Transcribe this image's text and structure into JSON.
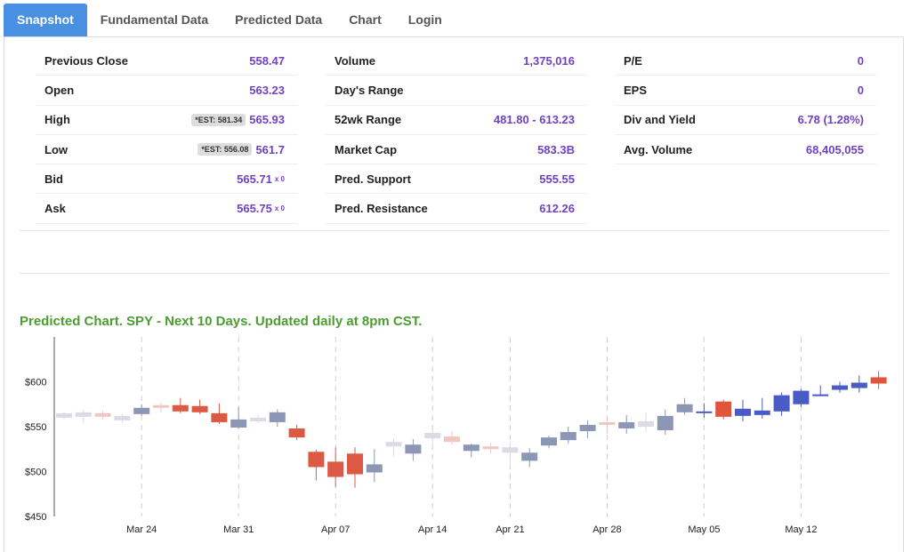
{
  "tabs": [
    "Snapshot",
    "Fundamental Data",
    "Predicted Data",
    "Chart",
    "Login"
  ],
  "active_tab": "Snapshot",
  "col1": [
    {
      "label": "Previous Close",
      "value": "558.47"
    },
    {
      "label": "Open",
      "value": "563.23"
    },
    {
      "label": "High",
      "est": "*EST: 581.34",
      "value": "565.93"
    },
    {
      "label": "Low",
      "est": "*EST: 556.08",
      "value": "561.7"
    },
    {
      "label": "Bid",
      "value": "565.71",
      "sub": "x 0"
    },
    {
      "label": "Ask",
      "value": "565.75",
      "sub": "x 0"
    }
  ],
  "col2": [
    {
      "label": "Volume",
      "value": "1,375,016"
    },
    {
      "label": "Day's Range",
      "value": ""
    },
    {
      "label": "52wk Range",
      "value": "481.80 - 613.23"
    },
    {
      "label": "Market Cap",
      "value": "583.3B"
    },
    {
      "label": "Pred. Support",
      "value": "555.55"
    },
    {
      "label": "Pred. Resistance",
      "value": "612.26"
    }
  ],
  "col3": [
    {
      "label": "P/E",
      "value": "0"
    },
    {
      "label": "EPS",
      "value": "0"
    },
    {
      "label": "Div and Yield",
      "value": "6.78 (1.28%)"
    },
    {
      "label": "Avg. Volume",
      "value": "68,405,055"
    }
  ],
  "chart_title": "Predicted Chart. SPY - Next 10 Days. Updated daily at 8pm CST.",
  "colors": {
    "tab_active": "#4a90e2",
    "value_purple": "#6f42c1",
    "title_green": "#4a9d2e",
    "hist_up": "#dadbe3",
    "hist_up_strong": "#8c97b5",
    "hist_down": "#f0c6c0",
    "hist_down_strong": "#dc5a44",
    "pred_up": "#4a5bc6",
    "pred_down": "#e2553d"
  },
  "chart_data": {
    "type": "candlestick",
    "title": "Predicted Chart. SPY - Next 10 Days. Updated daily at 8pm CST.",
    "ylim": [
      450,
      650
    ],
    "y_ticks": [
      450,
      500,
      550,
      600
    ],
    "y_tick_labels": [
      "$450",
      "$500",
      "$550",
      "$600"
    ],
    "x_tick_labels": [
      "Mar 24",
      "Mar 31",
      "Apr 07",
      "Apr 14",
      "Apr 21",
      "Apr 28",
      "May 05",
      "May 12"
    ],
    "x_tick_index": [
      4,
      9,
      14,
      19,
      23,
      28,
      33,
      38
    ],
    "candles": [
      {
        "o": 560,
        "c": 565,
        "h": 566,
        "l": 559,
        "kind": "hist"
      },
      {
        "o": 561,
        "c": 566,
        "h": 569,
        "l": 554,
        "kind": "hist"
      },
      {
        "o": 565,
        "c": 561,
        "h": 568,
        "l": 558,
        "kind": "hist"
      },
      {
        "o": 557,
        "c": 562,
        "h": 564,
        "l": 554,
        "kind": "hist"
      },
      {
        "o": 564,
        "c": 571,
        "h": 575,
        "l": 562,
        "kind": "hist"
      },
      {
        "o": 574,
        "c": 571,
        "h": 577,
        "l": 566,
        "kind": "hist"
      },
      {
        "o": 574,
        "c": 567,
        "h": 582,
        "l": 565,
        "kind": "hist"
      },
      {
        "o": 573,
        "c": 566,
        "h": 580,
        "l": 564,
        "kind": "hist"
      },
      {
        "o": 565,
        "c": 555,
        "h": 576,
        "l": 553,
        "kind": "hist"
      },
      {
        "o": 549,
        "c": 558,
        "h": 572,
        "l": 548,
        "kind": "hist"
      },
      {
        "o": 556,
        "c": 560,
        "h": 563,
        "l": 554,
        "kind": "hist"
      },
      {
        "o": 555,
        "c": 566,
        "h": 569,
        "l": 550,
        "kind": "hist"
      },
      {
        "o": 548,
        "c": 538,
        "h": 552,
        "l": 535,
        "kind": "hist"
      },
      {
        "o": 522,
        "c": 505,
        "h": 524,
        "l": 490,
        "kind": "hist"
      },
      {
        "o": 511,
        "c": 494,
        "h": 527,
        "l": 483,
        "kind": "hist"
      },
      {
        "o": 520,
        "c": 497,
        "h": 527,
        "l": 482,
        "kind": "hist"
      },
      {
        "o": 499,
        "c": 508,
        "h": 525,
        "l": 488,
        "kind": "hist"
      },
      {
        "o": 528,
        "c": 533,
        "h": 537,
        "l": 517,
        "kind": "hist"
      },
      {
        "o": 520,
        "c": 530,
        "h": 536,
        "l": 512,
        "kind": "hist"
      },
      {
        "o": 537,
        "c": 543,
        "h": 546,
        "l": 524,
        "kind": "hist"
      },
      {
        "o": 539,
        "c": 533,
        "h": 545,
        "l": 530,
        "kind": "hist"
      },
      {
        "o": 523,
        "c": 530,
        "h": 531,
        "l": 516,
        "kind": "hist"
      },
      {
        "o": 528,
        "c": 525,
        "h": 532,
        "l": 520,
        "kind": "hist"
      },
      {
        "o": 521,
        "c": 527,
        "h": 533,
        "l": 508,
        "kind": "hist"
      },
      {
        "o": 512,
        "c": 521,
        "h": 526,
        "l": 505,
        "kind": "hist"
      },
      {
        "o": 529,
        "c": 538,
        "h": 540,
        "l": 526,
        "kind": "hist"
      },
      {
        "o": 535,
        "c": 544,
        "h": 550,
        "l": 531,
        "kind": "hist"
      },
      {
        "o": 545,
        "c": 552,
        "h": 557,
        "l": 537,
        "kind": "hist"
      },
      {
        "o": 555,
        "c": 552,
        "h": 560,
        "l": 542,
        "kind": "hist"
      },
      {
        "o": 548,
        "c": 555,
        "h": 563,
        "l": 542,
        "kind": "hist"
      },
      {
        "o": 550,
        "c": 556,
        "h": 566,
        "l": 544,
        "kind": "hist"
      },
      {
        "o": 546,
        "c": 562,
        "h": 569,
        "l": 541,
        "kind": "hist"
      },
      {
        "o": 566,
        "c": 575,
        "h": 582,
        "l": 563,
        "kind": "hist"
      },
      {
        "o": 566,
        "c": 567,
        "h": 576,
        "l": 560,
        "kind": "pred"
      },
      {
        "o": 578,
        "c": 561,
        "h": 580,
        "l": 558,
        "kind": "pred"
      },
      {
        "o": 562,
        "c": 570,
        "h": 580,
        "l": 556,
        "kind": "pred"
      },
      {
        "o": 563,
        "c": 568,
        "h": 582,
        "l": 559,
        "kind": "pred"
      },
      {
        "o": 567,
        "c": 585,
        "h": 588,
        "l": 562,
        "kind": "pred"
      },
      {
        "o": 575,
        "c": 590,
        "h": 592,
        "l": 572,
        "kind": "pred"
      },
      {
        "o": 584,
        "c": 586,
        "h": 596,
        "l": 584,
        "kind": "pred"
      },
      {
        "o": 591,
        "c": 596,
        "h": 600,
        "l": 588,
        "kind": "pred"
      },
      {
        "o": 593,
        "c": 599,
        "h": 607,
        "l": 588,
        "kind": "pred"
      },
      {
        "o": 605,
        "c": 598,
        "h": 612,
        "l": 592,
        "kind": "pred"
      }
    ]
  }
}
